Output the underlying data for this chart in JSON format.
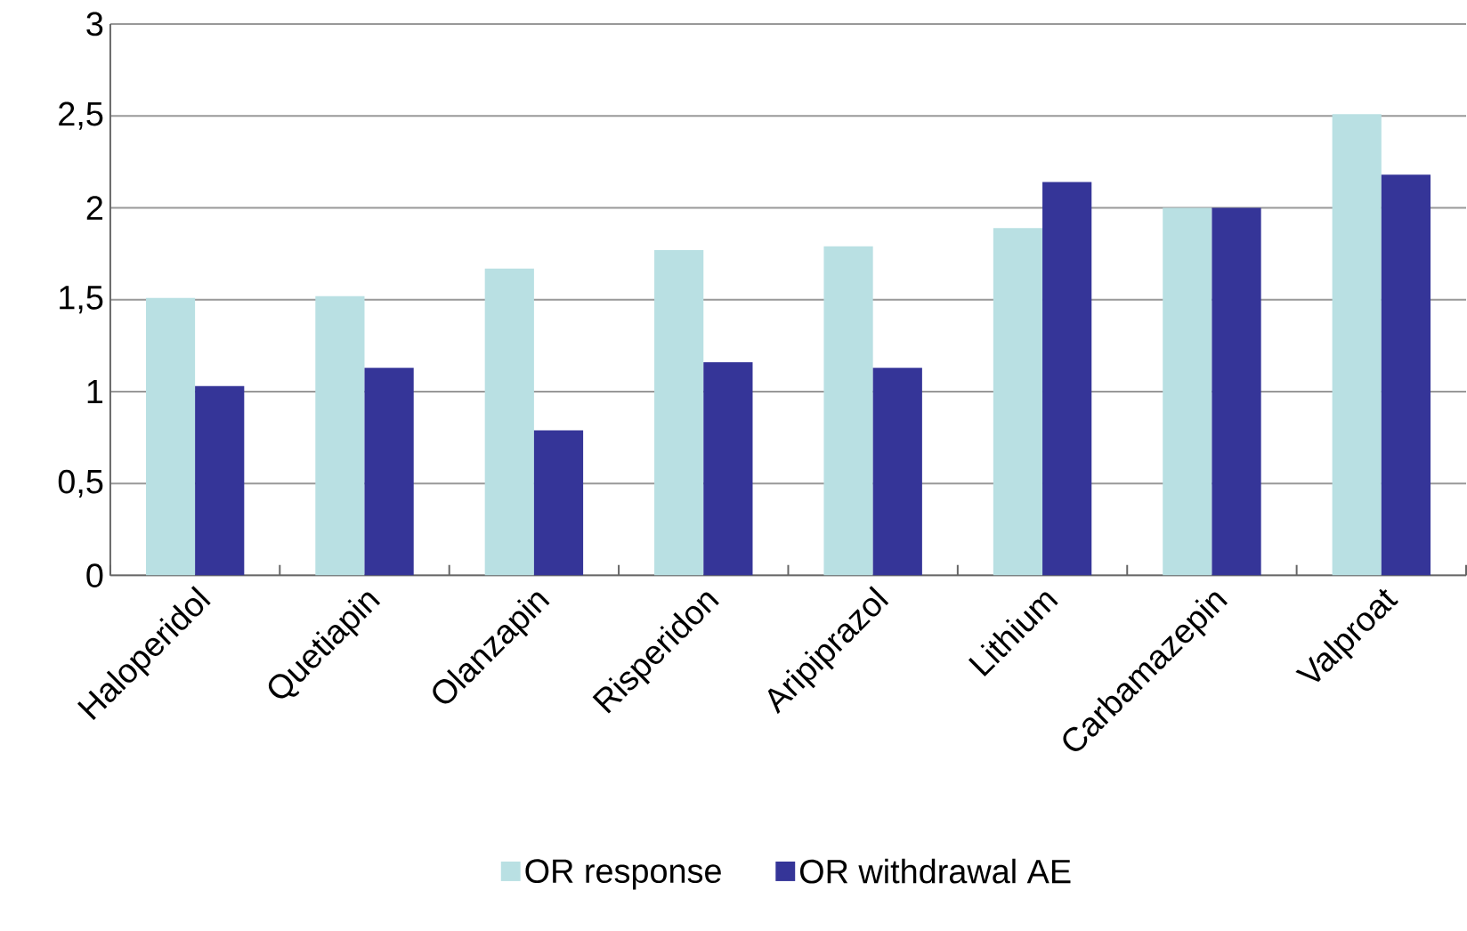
{
  "chart_data": {
    "type": "bar",
    "categories": [
      "Haloperidol",
      "Quetiapin",
      "Olanzapin",
      "Risperidon",
      "Aripiprazol",
      "Lithium",
      "Carbamazepin",
      "Valproat"
    ],
    "series": [
      {
        "name": "OR response",
        "color": "#b9e0e3",
        "values": [
          1.51,
          1.52,
          1.67,
          1.77,
          1.79,
          1.89,
          2.0,
          2.51
        ]
      },
      {
        "name": "OR withdrawal AE",
        "color": "#353598",
        "values": [
          1.03,
          1.13,
          0.79,
          1.16,
          1.13,
          2.14,
          2.0,
          2.18
        ]
      }
    ],
    "ylim": [
      0,
      3
    ],
    "yticks": [
      0,
      {
        "value": 0.5,
        "label": "0,5"
      },
      1,
      {
        "value": 1.5,
        "label": "1,5"
      },
      2,
      {
        "value": 2.5,
        "label": "2,5"
      },
      3
    ],
    "grid": "y",
    "legend": "bottom"
  }
}
